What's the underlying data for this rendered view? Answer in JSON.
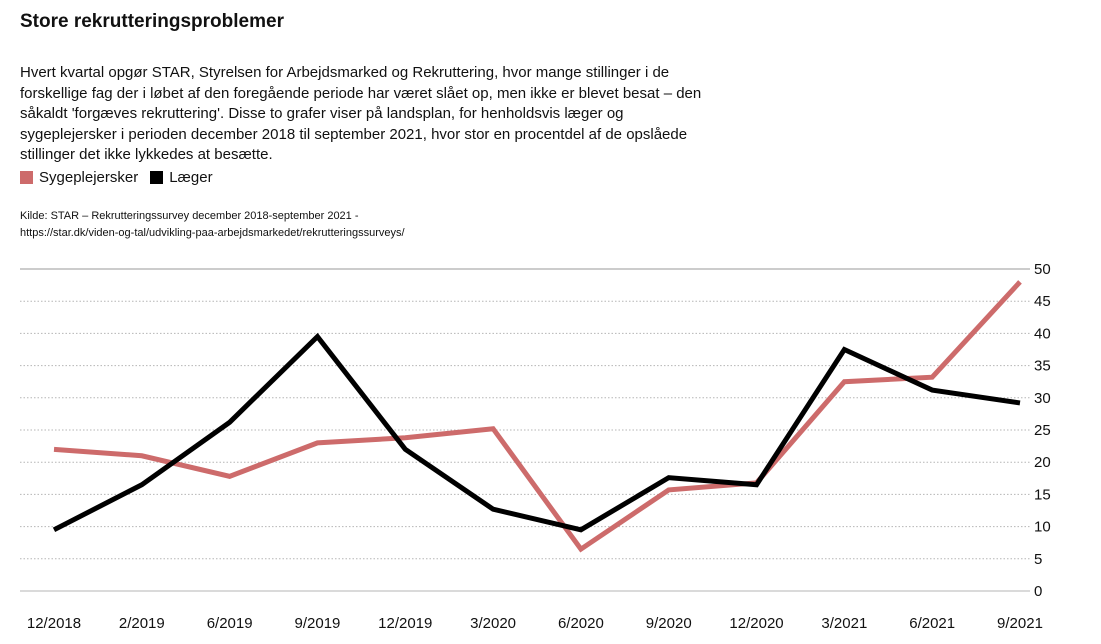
{
  "header": {
    "title": "Store rekrutteringsproblemer",
    "description": "Hvert kvartal opgør STAR, Styrelsen for Arbejdsmarked og Rekruttering, hvor mange stillinger i de forskellige fag der i løbet af den foregående periode har været slået op, men ikke er blevet besat – den såkaldt 'forgæves rekruttering'. Disse to grafer viser på landsplan, for henholdsvis læger og sygeplejersker i perioden december 2018 til september 2021, hvor stor en procentdel af de opslåede stillinger det ikke lykkedes at besætte."
  },
  "legend": {
    "items": [
      {
        "label": "Sygeplejersker",
        "color": "#cd6b6b"
      },
      {
        "label": "Læger",
        "color": "#000000"
      }
    ]
  },
  "source": {
    "line1": "Kilde: STAR – Rekrutteringssurvey december 2018-september 2021 -",
    "line2": "https://star.dk/viden-og-tal/udvikling-paa-arbejdsmarkedet/rekrutteringssurveys/"
  },
  "chart_data": {
    "type": "line",
    "title": "Store rekrutteringsproblemer",
    "xlabel": "",
    "ylabel": "",
    "categories": [
      "12/2018",
      "2/2019",
      "6/2019",
      "9/2019",
      "12/2019",
      "3/2020",
      "6/2020",
      "9/2020",
      "12/2020",
      "3/2021",
      "6/2021",
      "9/2021"
    ],
    "yticks": [
      0,
      5,
      10,
      15,
      20,
      25,
      30,
      35,
      40,
      45,
      50
    ],
    "ylim": [
      0,
      50
    ],
    "grid": true,
    "legend_position": "top-left",
    "series": [
      {
        "name": "Sygeplejersker",
        "color": "#cd6b6b",
        "values": [
          22,
          21,
          17.8,
          23,
          23.8,
          25.2,
          6.5,
          15.7,
          16.8,
          32.5,
          33.2,
          48
        ]
      },
      {
        "name": "Læger",
        "color": "#000000",
        "values": [
          9.5,
          16.5,
          26.2,
          39.5,
          22,
          12.7,
          9.5,
          17.6,
          16.5,
          37.5,
          31.2,
          29.2
        ]
      }
    ]
  }
}
